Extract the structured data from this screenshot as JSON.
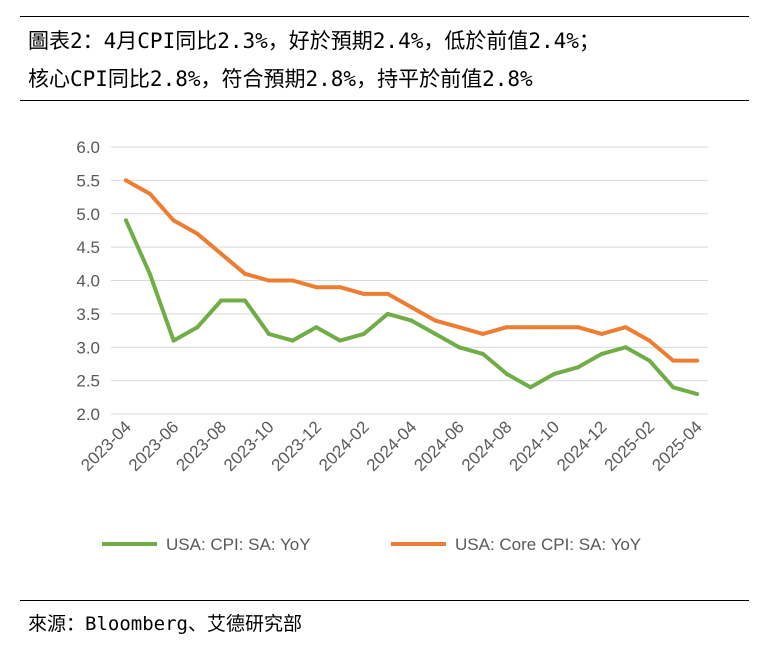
{
  "header": {
    "title_line1": "圖表2：4月CPI同比2.3%，好於預期2.4%，低於前值2.4%；",
    "title_line2": "核心CPI同比2.8%，符合預期2.8%，持平於前值2.8%"
  },
  "footer": {
    "source": "來源：Bloomberg、艾德研究部"
  },
  "colors": {
    "cpi": "#70AD47",
    "core_cpi": "#ED7D31",
    "grid": "#D9D9D9",
    "axis_text": "#595959"
  },
  "chart_data": {
    "type": "line",
    "title": "",
    "xlabel": "",
    "ylabel": "",
    "ylim": [
      2.0,
      6.0
    ],
    "yticks": [
      "2.0",
      "2.5",
      "3.0",
      "3.5",
      "4.0",
      "4.5",
      "5.0",
      "5.5",
      "6.0"
    ],
    "grid": true,
    "legend_position": "bottom",
    "x": [
      "2023-04",
      "2023-05",
      "2023-06",
      "2023-07",
      "2023-08",
      "2023-09",
      "2023-10",
      "2023-11",
      "2023-12",
      "2024-01",
      "2024-02",
      "2024-03",
      "2024-04",
      "2024-05",
      "2024-06",
      "2024-07",
      "2024-08",
      "2024-09",
      "2024-10",
      "2024-11",
      "2024-12",
      "2025-01",
      "2025-02",
      "2025-03",
      "2025-04"
    ],
    "x_tick_labels": [
      "2023-04",
      "2023-06",
      "2023-08",
      "2023-10",
      "2023-12",
      "2024-02",
      "2024-04",
      "2024-06",
      "2024-08",
      "2024-10",
      "2024-12",
      "2025-02",
      "2025-04"
    ],
    "series": [
      {
        "name": "USA: CPI: SA: YoY",
        "values": [
          4.9,
          4.1,
          3.1,
          3.3,
          3.7,
          3.7,
          3.2,
          3.1,
          3.3,
          3.1,
          3.2,
          3.5,
          3.4,
          3.2,
          3.0,
          2.9,
          2.6,
          2.4,
          2.6,
          2.7,
          2.9,
          3.0,
          2.8,
          2.4,
          2.3
        ]
      },
      {
        "name": "USA: Core CPI: SA: YoY",
        "values": [
          5.5,
          5.3,
          4.9,
          4.7,
          4.4,
          4.1,
          4.0,
          4.0,
          3.9,
          3.9,
          3.8,
          3.8,
          3.6,
          3.4,
          3.3,
          3.2,
          3.3,
          3.3,
          3.3,
          3.3,
          3.2,
          3.3,
          3.1,
          2.8,
          2.8
        ]
      }
    ]
  }
}
